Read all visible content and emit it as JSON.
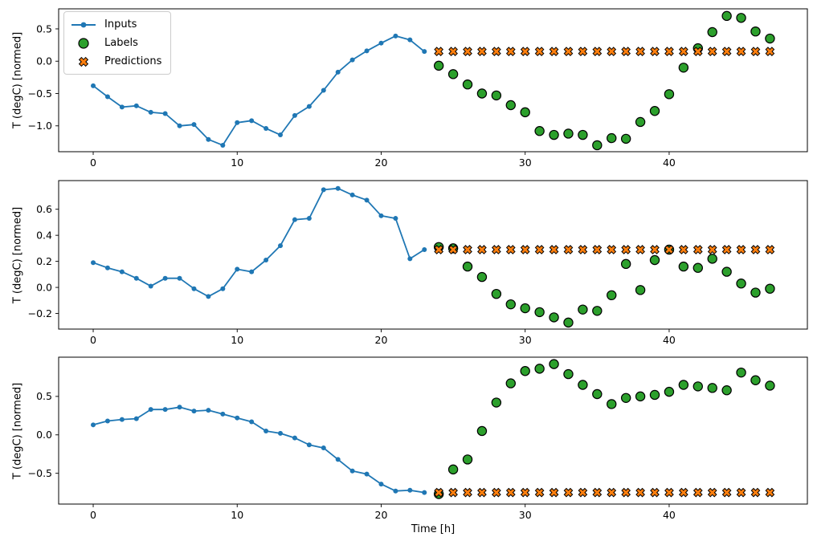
{
  "figure": {
    "xlabel": "Time [h]",
    "ylabel": "T (degC) [normed]",
    "background": "#ffffff",
    "legend": {
      "position": "upper-left",
      "items": [
        {
          "label": "Inputs",
          "marker": "line-dot",
          "color": "#1f77b4"
        },
        {
          "label": "Labels",
          "marker": "circle",
          "color": "#2ca02c"
        },
        {
          "label": "Predictions",
          "marker": "x",
          "color": "#ff7f0e"
        }
      ]
    }
  },
  "chart_data": [
    {
      "type": "line",
      "ylabel": "T (degC) [normed]",
      "xlim": [
        -2.4,
        49.6
      ],
      "ylim": [
        -1.4,
        0.81
      ],
      "xticks": [
        0,
        10,
        20,
        30,
        40
      ],
      "yticks": [
        0.5,
        0.0,
        -0.5,
        -1.0
      ],
      "grid": false,
      "series": [
        {
          "name": "Inputs",
          "type": "line",
          "marker": "dot",
          "color": "#1f77b4",
          "x_start": 0,
          "values": [
            -0.38,
            -0.55,
            -0.71,
            -0.69,
            -0.79,
            -0.81,
            -1.0,
            -0.98,
            -1.21,
            -1.3,
            -0.95,
            -0.92,
            -1.04,
            -1.14,
            -0.84,
            -0.7,
            -0.45,
            -0.17,
            0.02,
            0.16,
            0.28,
            0.39,
            0.33,
            0.15
          ]
        },
        {
          "name": "Labels",
          "type": "scatter",
          "marker": "circle",
          "color": "#2ca02c",
          "edge": "#000000",
          "x_start": 24,
          "values": [
            -0.07,
            -0.2,
            -0.36,
            -0.5,
            -0.53,
            -0.68,
            -0.79,
            -1.08,
            -1.14,
            -1.12,
            -1.14,
            -1.3,
            -1.19,
            -1.2,
            -0.94,
            -0.77,
            -0.51,
            -0.1,
            0.2,
            0.45,
            0.7,
            0.67,
            0.46,
            0.35
          ]
        },
        {
          "name": "Predictions",
          "type": "scatter",
          "marker": "X",
          "color": "#ff7f0e",
          "edge": "#000000",
          "x_start": 24,
          "values": [
            0.15,
            0.15,
            0.15,
            0.15,
            0.15,
            0.15,
            0.15,
            0.15,
            0.15,
            0.15,
            0.15,
            0.15,
            0.15,
            0.15,
            0.15,
            0.15,
            0.15,
            0.15,
            0.15,
            0.15,
            0.15,
            0.15,
            0.15,
            0.15
          ]
        }
      ]
    },
    {
      "type": "line",
      "ylabel": "T (degC) [normed]",
      "xlim": [
        -2.4,
        49.6
      ],
      "ylim": [
        -0.32,
        0.82
      ],
      "xticks": [
        0,
        10,
        20,
        30,
        40
      ],
      "yticks": [
        0.6,
        0.4,
        0.2,
        0.0,
        -0.2
      ],
      "grid": false,
      "series": [
        {
          "name": "Inputs",
          "type": "line",
          "marker": "dot",
          "color": "#1f77b4",
          "x_start": 0,
          "values": [
            0.19,
            0.15,
            0.12,
            0.07,
            0.01,
            0.07,
            0.07,
            -0.01,
            -0.07,
            -0.01,
            0.14,
            0.12,
            0.21,
            0.32,
            0.52,
            0.53,
            0.75,
            0.76,
            0.71,
            0.67,
            0.55,
            0.53,
            0.22,
            0.29
          ]
        },
        {
          "name": "Labels",
          "type": "scatter",
          "marker": "circle",
          "color": "#2ca02c",
          "edge": "#000000",
          "x_start": 24,
          "values": [
            0.31,
            0.3,
            0.16,
            0.08,
            -0.05,
            -0.13,
            -0.16,
            -0.19,
            -0.23,
            -0.27,
            -0.17,
            -0.18,
            -0.06,
            0.18,
            -0.02,
            0.21,
            0.29,
            0.16,
            0.15,
            0.22,
            0.12,
            0.03,
            -0.04,
            -0.01
          ]
        },
        {
          "name": "Predictions",
          "type": "scatter",
          "marker": "X",
          "color": "#ff7f0e",
          "edge": "#000000",
          "x_start": 24,
          "values": [
            0.29,
            0.29,
            0.29,
            0.29,
            0.29,
            0.29,
            0.29,
            0.29,
            0.29,
            0.29,
            0.29,
            0.29,
            0.29,
            0.29,
            0.29,
            0.29,
            0.29,
            0.29,
            0.29,
            0.29,
            0.29,
            0.29,
            0.29,
            0.29
          ]
        }
      ]
    },
    {
      "type": "line",
      "xlabel": "Time [h]",
      "ylabel": "T (degC) [normed]",
      "xlim": [
        -2.4,
        49.6
      ],
      "ylim": [
        -0.9,
        1.01
      ],
      "xticks": [
        0,
        10,
        20,
        30,
        40
      ],
      "yticks": [
        0.5,
        0.0,
        -0.5
      ],
      "grid": false,
      "series": [
        {
          "name": "Inputs",
          "type": "line",
          "marker": "dot",
          "color": "#1f77b4",
          "x_start": 0,
          "values": [
            0.13,
            0.18,
            0.2,
            0.21,
            0.33,
            0.33,
            0.36,
            0.31,
            0.32,
            0.27,
            0.22,
            0.17,
            0.05,
            0.02,
            -0.04,
            -0.13,
            -0.17,
            -0.32,
            -0.47,
            -0.51,
            -0.64,
            -0.73,
            -0.72,
            -0.75
          ]
        },
        {
          "name": "Labels",
          "type": "scatter",
          "marker": "circle",
          "color": "#2ca02c",
          "edge": "#000000",
          "x_start": 24,
          "values": [
            -0.77,
            -0.45,
            -0.32,
            0.05,
            0.42,
            0.67,
            0.83,
            0.86,
            0.92,
            0.79,
            0.65,
            0.53,
            0.4,
            0.48,
            0.5,
            0.52,
            0.56,
            0.65,
            0.63,
            0.61,
            0.58,
            0.81,
            0.71,
            0.64
          ]
        },
        {
          "name": "Predictions",
          "type": "scatter",
          "marker": "X",
          "color": "#ff7f0e",
          "edge": "#000000",
          "x_start": 24,
          "values": [
            -0.75,
            -0.75,
            -0.75,
            -0.75,
            -0.75,
            -0.75,
            -0.75,
            -0.75,
            -0.75,
            -0.75,
            -0.75,
            -0.75,
            -0.75,
            -0.75,
            -0.75,
            -0.75,
            -0.75,
            -0.75,
            -0.75,
            -0.75,
            -0.75,
            -0.75,
            -0.75,
            -0.75
          ]
        }
      ]
    }
  ]
}
